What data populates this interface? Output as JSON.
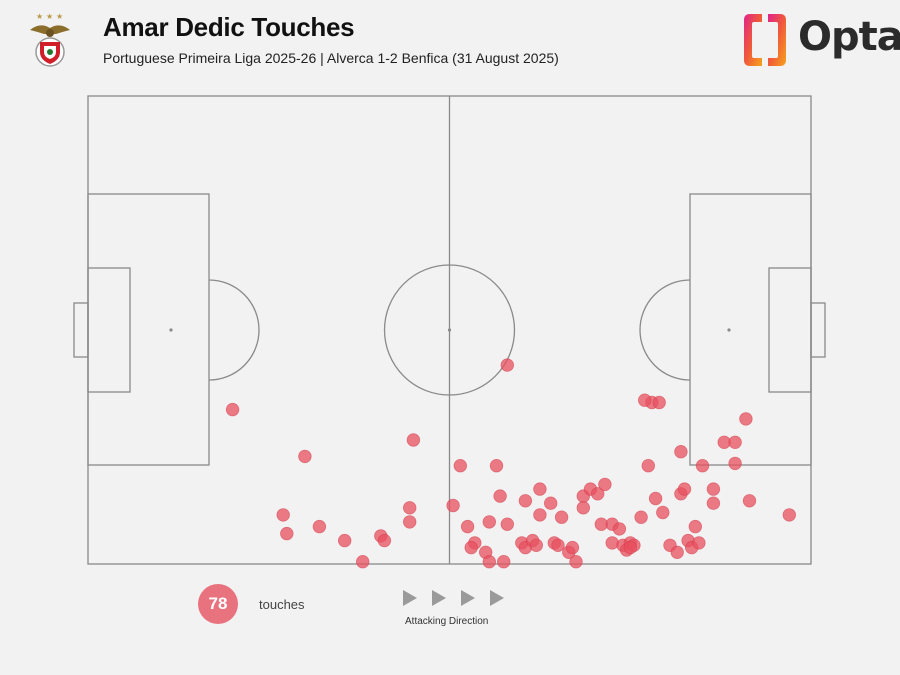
{
  "header": {
    "title": "Amar Dedic Touches",
    "subtitle": "Portuguese Primeira Liga 2025-26 | Alverca 1-2 Benfica (31 August 2025)",
    "crest_icon": "benfica-crest-icon",
    "brand": "Opta",
    "brand_icon": "opta-logo-icon"
  },
  "legend": {
    "count": "78",
    "count_label": "touches",
    "direction_label": "Attacking Direction",
    "direction_icon": "play-arrow-icon"
  },
  "colors": {
    "background": "#f2f2f2",
    "pitch_lines": "#8a8a8a",
    "touch": "#e8505f",
    "touch_opacity": 0.75
  },
  "chart_data": {
    "type": "scatter",
    "pitch": "full",
    "xlim": [
      0,
      100
    ],
    "ylim": [
      0,
      100
    ],
    "series": [
      {
        "points": [
          [
            20,
            33
          ],
          [
            58,
            42.5
          ],
          [
            45,
            26.5
          ],
          [
            30,
            23
          ],
          [
            27,
            10.5
          ],
          [
            27.5,
            6.5
          ],
          [
            32,
            8
          ],
          [
            35.5,
            5
          ],
          [
            38,
            0.5
          ],
          [
            40.5,
            6
          ],
          [
            41,
            5
          ],
          [
            44.5,
            12
          ],
          [
            44.5,
            9
          ],
          [
            50.5,
            12.5
          ],
          [
            51.5,
            21
          ],
          [
            56.5,
            21
          ],
          [
            57,
            14.5
          ],
          [
            52.5,
            8
          ],
          [
            53.5,
            4.5
          ],
          [
            55,
            2.5
          ],
          [
            53,
            3.5
          ],
          [
            55.5,
            0.5
          ],
          [
            57.5,
            0.5
          ],
          [
            55.5,
            9
          ],
          [
            58,
            8.5
          ],
          [
            60.5,
            13.5
          ],
          [
            60,
            4.5
          ],
          [
            60.5,
            3.5
          ],
          [
            61.5,
            5
          ],
          [
            62.5,
            16
          ],
          [
            62,
            4
          ],
          [
            64,
            13
          ],
          [
            62.5,
            10.5
          ],
          [
            64.5,
            4.5
          ],
          [
            65.5,
            10
          ],
          [
            65,
            4
          ],
          [
            66.5,
            2.5
          ],
          [
            67,
            3.5
          ],
          [
            67.5,
            0.5
          ],
          [
            68.5,
            14.5
          ],
          [
            68.5,
            12
          ],
          [
            69.5,
            16
          ],
          [
            70.5,
            15
          ],
          [
            71.5,
            17
          ],
          [
            71,
            8.5
          ],
          [
            72.5,
            8.5
          ],
          [
            72.5,
            4.5
          ],
          [
            73.5,
            7.5
          ],
          [
            74,
            4
          ],
          [
            74.5,
            3
          ],
          [
            75,
            4.5
          ],
          [
            75.5,
            4
          ],
          [
            75,
            3.5
          ],
          [
            76.5,
            10
          ],
          [
            77.5,
            21
          ],
          [
            78,
            34.5
          ],
          [
            77,
            35
          ],
          [
            79,
            34.5
          ],
          [
            78.5,
            14
          ],
          [
            79.5,
            11
          ],
          [
            80.5,
            4
          ],
          [
            81.5,
            2.5
          ],
          [
            82,
            15
          ],
          [
            82.5,
            16
          ],
          [
            82,
            24
          ],
          [
            84,
            8
          ],
          [
            83,
            5
          ],
          [
            83.5,
            3.5
          ],
          [
            84.5,
            4.5
          ],
          [
            85,
            21
          ],
          [
            86.5,
            16
          ],
          [
            86.5,
            13
          ],
          [
            88,
            26
          ],
          [
            89.5,
            26
          ],
          [
            89.5,
            21.5
          ],
          [
            91,
            31
          ],
          [
            91.5,
            13.5
          ],
          [
            97,
            10.5
          ]
        ]
      }
    ]
  }
}
